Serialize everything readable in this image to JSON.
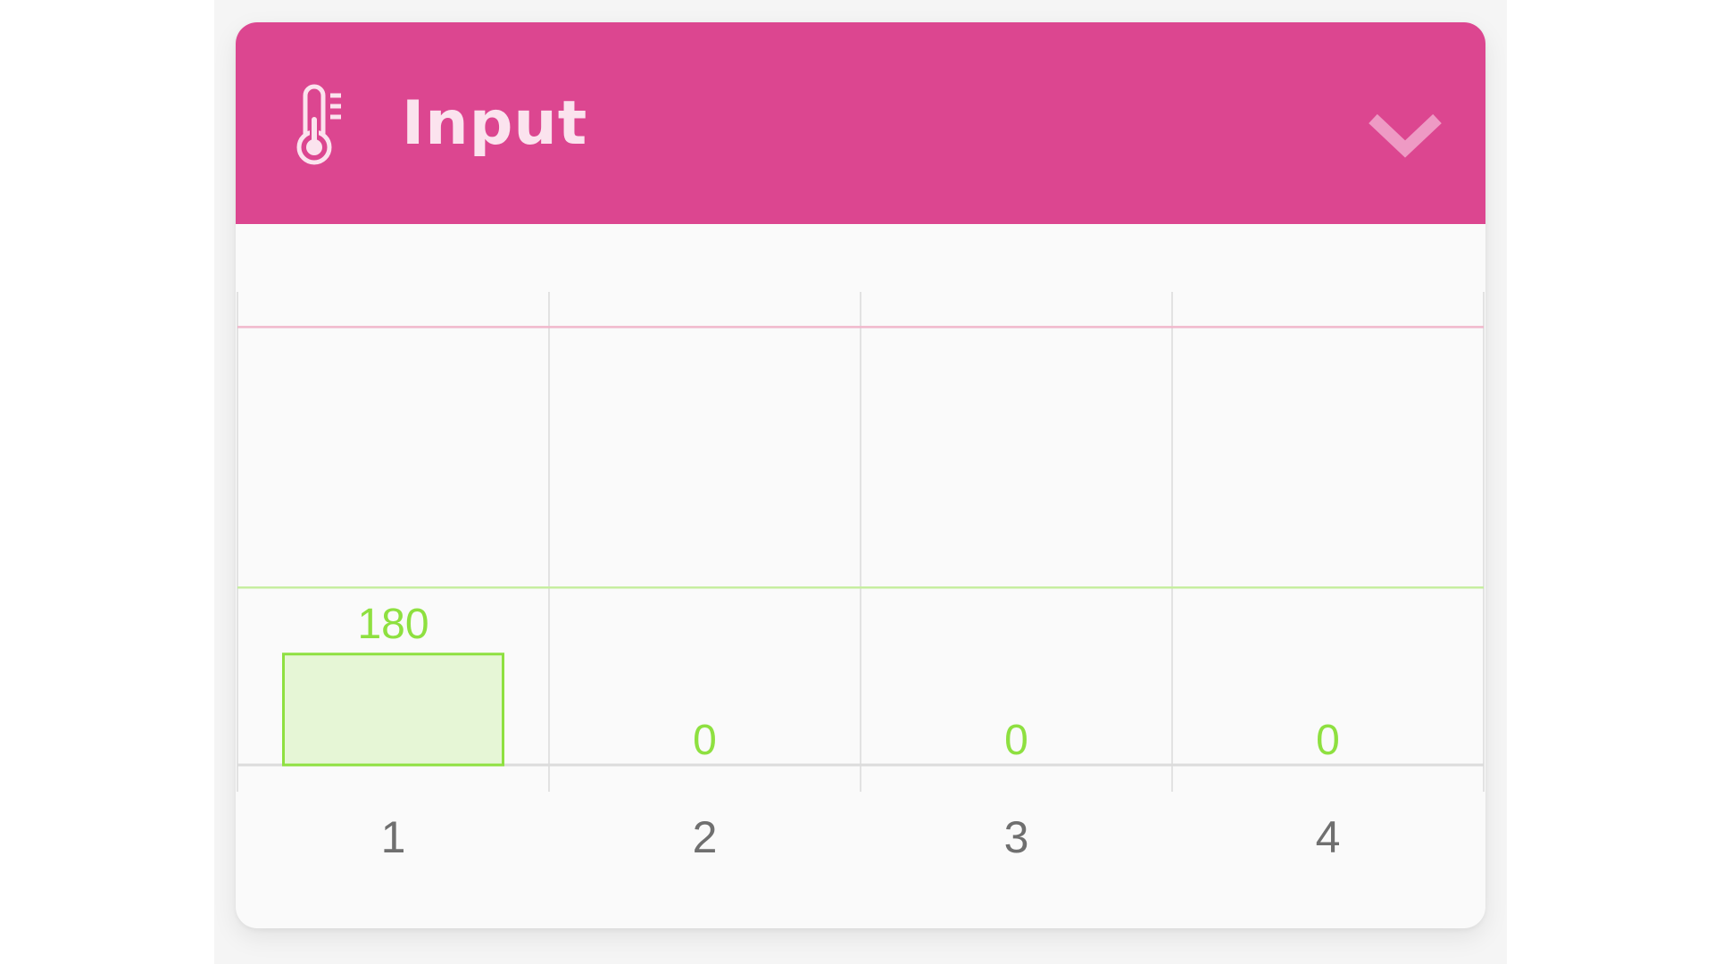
{
  "widget": {
    "title": "Input",
    "icon": "thermometer-icon",
    "collapse_icon": "chevron-down-icon",
    "header_color": "#dc4690",
    "header_text_color": "#fbe3ee"
  },
  "chart_data": {
    "type": "bar",
    "title": "",
    "xlabel": "",
    "ylabel": "",
    "categories": [
      "1",
      "2",
      "3",
      "4"
    ],
    "values": [
      180,
      0,
      0,
      0
    ],
    "data_labels": [
      "180",
      "0",
      "0",
      "0"
    ],
    "ylim": [
      0,
      768
    ],
    "grid": true,
    "reference_lines": [
      {
        "value": 711,
        "color": "#f0b8cc"
      },
      {
        "value": 288,
        "color": "#c6eea0"
      }
    ],
    "bar_color": "#e6f6d6",
    "bar_border_color": "#8ee040",
    "label_color": "#8ee040"
  }
}
